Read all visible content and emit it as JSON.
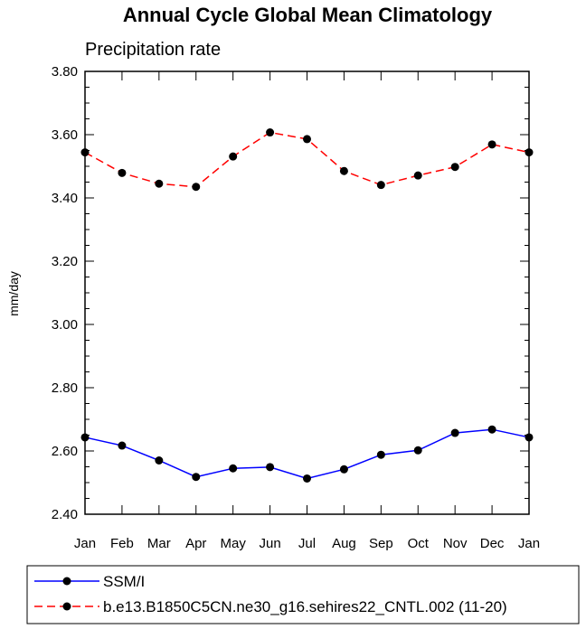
{
  "chart_data": {
    "type": "line",
    "title": "Annual Cycle Global Mean Climatology",
    "subtitle": "Precipitation rate",
    "ylabel": "mm/day",
    "xlabel": "",
    "categories": [
      "Jan",
      "Feb",
      "Mar",
      "Apr",
      "May",
      "Jun",
      "Jul",
      "Aug",
      "Sep",
      "Oct",
      "Nov",
      "Dec",
      "Jan"
    ],
    "ylim": [
      2.4,
      3.8
    ],
    "yticks": [
      "2.40",
      "2.60",
      "2.80",
      "3.00",
      "3.20",
      "3.40",
      "3.60",
      "3.80"
    ],
    "grid": false,
    "legend_position": "bottom",
    "series": [
      {
        "name": "SSM/I",
        "color": "#0000ff",
        "line_style": "solid",
        "marker": "filled-circle",
        "values": [
          2.643,
          2.617,
          2.57,
          2.518,
          2.545,
          2.549,
          2.513,
          2.542,
          2.588,
          2.602,
          2.657,
          2.668,
          2.643
        ]
      },
      {
        "name": "b.e13.B1850C5CN.ne30_g16.sehires22_CNTL.002 (11-20)",
        "color": "#ff0000",
        "line_style": "dashed",
        "marker": "filled-circle",
        "values": [
          3.544,
          3.479,
          3.445,
          3.435,
          3.531,
          3.607,
          3.586,
          3.485,
          3.441,
          3.471,
          3.498,
          3.569,
          3.544
        ]
      }
    ]
  }
}
